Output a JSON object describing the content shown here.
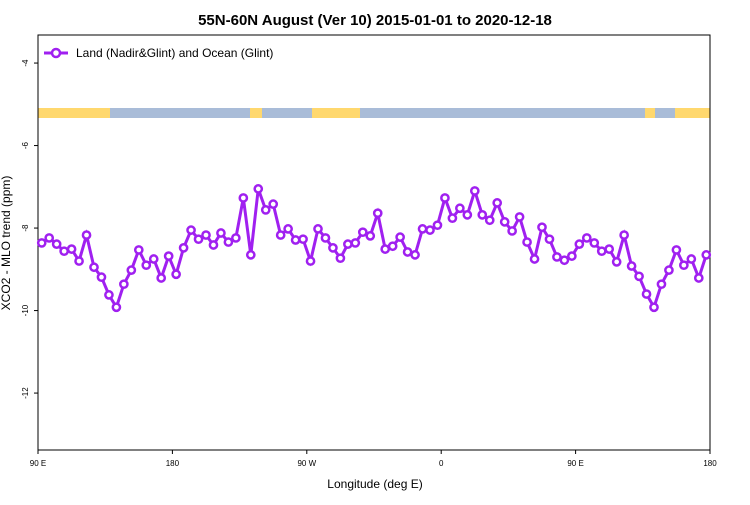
{
  "chart_data": {
    "type": "line",
    "title": "55N-60N August (Ver 10)   2015-01-01 to 2020-12-18",
    "x_label": "Longitude (deg E)",
    "y_label": "XCO2 - MLO trend (ppm)",
    "legend": "top-left",
    "xlim": [
      90,
      540
    ],
    "xticks": [
      {
        "value": 90,
        "label": "90 E"
      },
      {
        "value": 180,
        "label": "180"
      },
      {
        "value": 270,
        "label": "90 W"
      },
      {
        "value": 360,
        "label": "0"
      },
      {
        "value": 450,
        "label": "90 E"
      },
      {
        "value": 540,
        "label": "180"
      }
    ],
    "ylim": [
      -13.38,
      -3.32
    ],
    "yticks": [
      -12,
      -10,
      -8,
      -6,
      -4
    ],
    "x": [
      92.5,
      97.5,
      102.5,
      107.5,
      112.5,
      117.5,
      122.5,
      127.5,
      132.5,
      137.5,
      142.5,
      147.5,
      152.5,
      157.5,
      162.5,
      167.5,
      172.5,
      177.5,
      182.5,
      187.5,
      192.5,
      197.5,
      202.5,
      207.5,
      212.5,
      217.5,
      222.5,
      227.5,
      232.5,
      237.5,
      242.5,
      247.5,
      252.5,
      257.5,
      262.5,
      267.5,
      272.5,
      277.5,
      282.5,
      287.5,
      292.5,
      297.5,
      302.5,
      307.5,
      312.5,
      317.5,
      322.5,
      327.5,
      332.5,
      337.5,
      342.5,
      347.5,
      352.5,
      357.5,
      362.5,
      367.5,
      372.5,
      377.5,
      382.5,
      387.5,
      392.5,
      397.5,
      402.5,
      407.5,
      412.5,
      417.5,
      422.5,
      427.5,
      432.5,
      437.5,
      442.5,
      447.5,
      452.5,
      457.5,
      462.5,
      467.5,
      472.5,
      477.5,
      482.5,
      487.5,
      492.5,
      497.5,
      502.5,
      507.5,
      512.5,
      517.5,
      522.5,
      527.5,
      532.5,
      537.5
    ],
    "series": [
      {
        "name": "Land (Nadir&Glint) and Ocean (Glint)",
        "color": "#a020f0",
        "values": [
          -8.36,
          -8.24,
          -8.39,
          -8.56,
          -8.51,
          -8.8,
          -8.17,
          -8.95,
          -9.19,
          -9.62,
          -9.92,
          -9.36,
          -9.02,
          -8.53,
          -8.9,
          -8.75,
          -9.21,
          -8.68,
          -9.12,
          -8.48,
          -8.05,
          -8.27,
          -8.17,
          -8.41,
          -8.12,
          -8.34,
          -8.24,
          -7.27,
          -8.65,
          -7.05,
          -7.56,
          -7.42,
          -8.17,
          -8.02,
          -8.29,
          -8.27,
          -8.8,
          -8.02,
          -8.24,
          -8.48,
          -8.73,
          -8.39,
          -8.36,
          -8.1,
          -8.19,
          -7.64,
          -8.51,
          -8.44,
          -8.22,
          -8.58,
          -8.65,
          -8.02,
          -8.05,
          -7.93,
          -7.27,
          -7.76,
          -7.52,
          -7.68,
          -7.1,
          -7.68,
          -7.81,
          -7.39,
          -7.85,
          -8.07,
          -7.73,
          -8.34,
          -8.75,
          -7.98,
          -8.27,
          -8.7,
          -8.78,
          -8.68,
          -8.39,
          -8.24,
          -8.36,
          -8.56,
          -8.51,
          -8.82,
          -8.17,
          -8.92,
          -9.17,
          -9.6,
          -9.92,
          -9.36,
          -9.02,
          -8.53,
          -8.9,
          -8.75,
          -9.21,
          -8.65
        ]
      }
    ]
  }
}
